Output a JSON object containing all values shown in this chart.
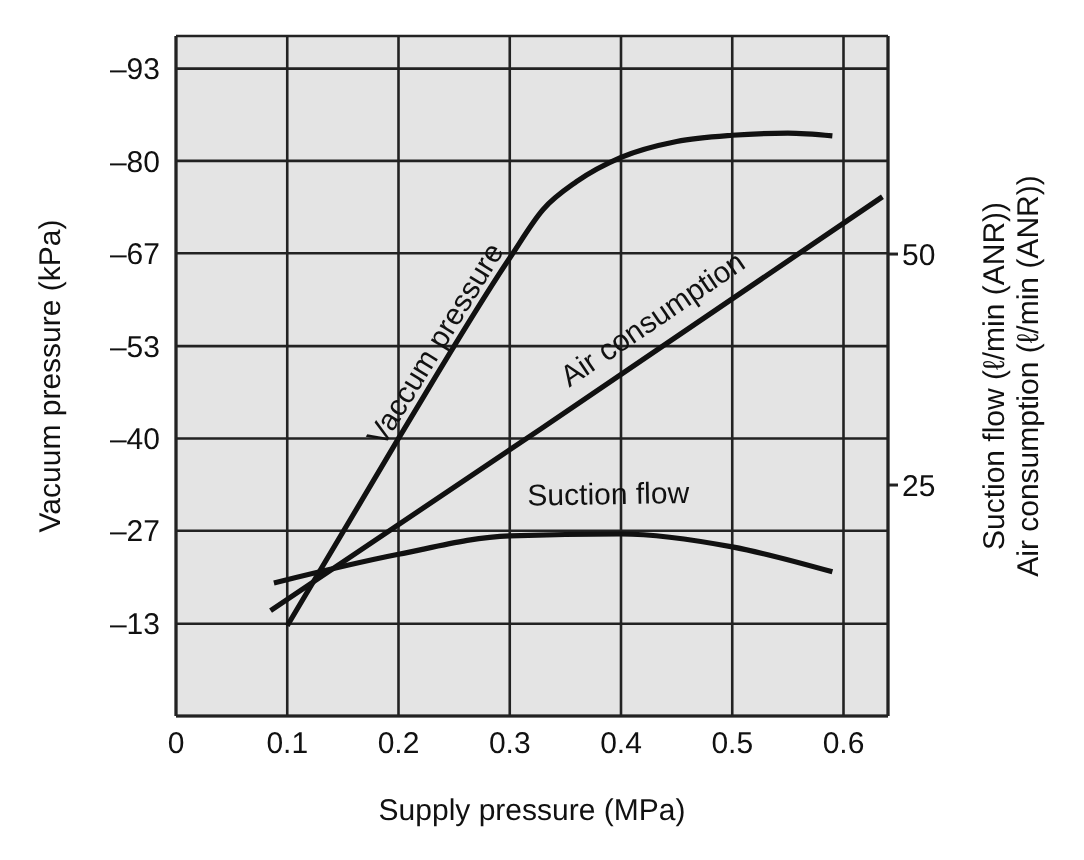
{
  "chart_data": {
    "type": "line",
    "xlabel": "Supply pressure (MPa)",
    "ylabel": "Vacuum pressure (kPa)",
    "y2label": "Suction flow (ℓ/min (ANR))\nAir consumption (ℓ/min (ANR))",
    "xlim": [
      0,
      0.64
    ],
    "xticks": [
      0,
      0.1,
      0.2,
      0.3,
      0.4,
      0.5,
      0.6
    ],
    "ylim": [
      0,
      -98
    ],
    "yticks": [
      {
        "value": -93.3,
        "label": "–93"
      },
      {
        "value": -80,
        "label": "–80"
      },
      {
        "value": -66.7,
        "label": "–67"
      },
      {
        "value": -53.3,
        "label": "–53"
      },
      {
        "value": -40,
        "label": "–40"
      },
      {
        "value": -26.7,
        "label": "–27"
      },
      {
        "value": -13.3,
        "label": "–13"
      }
    ],
    "y2lim": [
      0,
      73.6
    ],
    "y2ticks": [
      25,
      50
    ],
    "grid": true,
    "marker": "none",
    "line_style": "solid",
    "series": [
      {
        "name": "Vaccum pressure",
        "color": "#111111",
        "x": [
          0.1,
          0.2,
          0.3,
          0.33,
          0.36,
          0.4,
          0.45,
          0.5,
          0.55,
          0.59
        ],
        "values": [
          -13,
          -40,
          -66,
          -73,
          -77,
          -80.5,
          -82.8,
          -83.7,
          -84,
          -83.6
        ]
      },
      {
        "name": "Air consumption",
        "color": "#111111",
        "axis": "y2",
        "x": [
          0.085,
          0.327,
          0.635
        ],
        "values": [
          11.4,
          31,
          56.2
        ]
      },
      {
        "name": "Suction flow",
        "color": "#111111",
        "axis": "y2",
        "x": [
          0.088,
          0.2,
          0.3,
          0.4,
          0.5,
          0.59
        ],
        "values": [
          14.4,
          17.5,
          19.5,
          19.7,
          18.3,
          15.6
        ]
      }
    ]
  }
}
